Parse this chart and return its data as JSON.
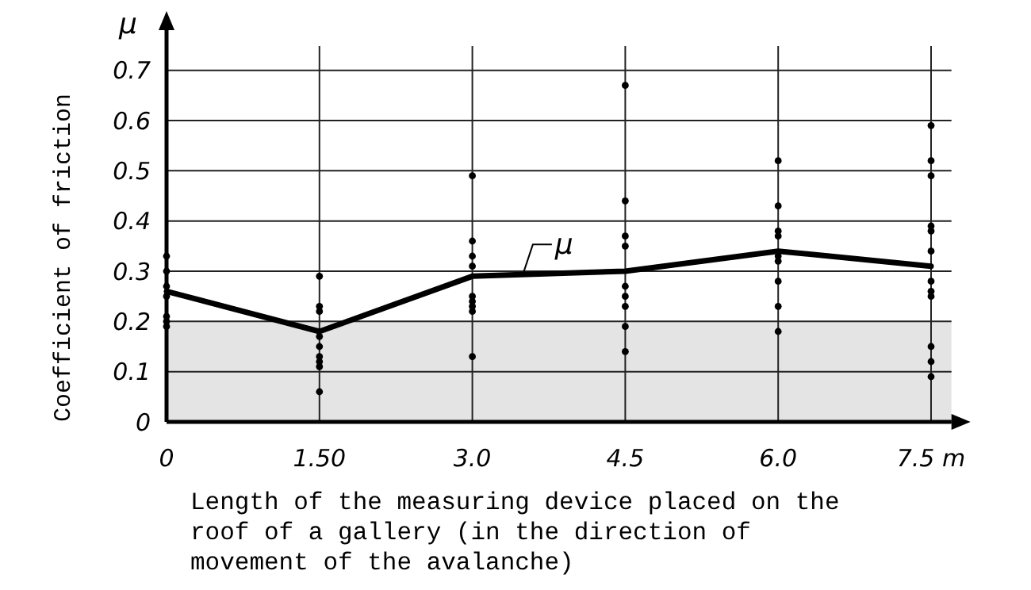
{
  "chart_data": {
    "type": "line",
    "xlabel": "Length of the measuring device placed on the roof of a gallery (in the direction of movement of the avalanche)",
    "ylabel": "Coefficient of friction",
    "annotations": [
      "μ"
    ],
    "x": [
      0,
      1.5,
      3,
      4.5,
      6,
      7.5
    ],
    "series": [
      {
        "name": "μ",
        "color": "#000000",
        "marker": "none",
        "values": [
          0.26,
          0.18,
          0.29,
          0.3,
          0.34,
          0.31
        ]
      },
      {
        "type": "scatter",
        "color": "#000000",
        "marker": "circle",
        "x": [
          0,
          0,
          0,
          0,
          0,
          0,
          0,
          1.5,
          1.5,
          1.5,
          1.5,
          1.5,
          1.5,
          1.5,
          1.5,
          1.5,
          3,
          3,
          3,
          3,
          3,
          3,
          3,
          3,
          3,
          4.5,
          4.5,
          4.5,
          4.5,
          4.5,
          4.5,
          4.5,
          4.5,
          4.5,
          6,
          6,
          6,
          6,
          6,
          6,
          6,
          6,
          6,
          7.5,
          7.5,
          7.5,
          7.5,
          7.5,
          7.5,
          7.5,
          7.5,
          7.5,
          7.5,
          7.5,
          7.5
        ],
        "values": [
          0.33,
          0.3,
          0.27,
          0.25,
          0.21,
          0.2,
          0.19,
          0.29,
          0.23,
          0.22,
          0.17,
          0.15,
          0.13,
          0.12,
          0.11,
          0.06,
          0.49,
          0.36,
          0.33,
          0.31,
          0.25,
          0.24,
          0.23,
          0.22,
          0.13,
          0.67,
          0.44,
          0.37,
          0.35,
          0.27,
          0.25,
          0.23,
          0.19,
          0.14,
          0.52,
          0.43,
          0.38,
          0.37,
          0.33,
          0.32,
          0.28,
          0.23,
          0.18,
          0.59,
          0.52,
          0.49,
          0.39,
          0.38,
          0.34,
          0.28,
          0.26,
          0.25,
          0.15,
          0.12,
          0.09
        ]
      }
    ],
    "xlim": [
      0,
      7.7
    ],
    "ylim": [
      0,
      0.78
    ],
    "xticks": [
      0,
      {
        "value": 1.5,
        "label": "1.50"
      },
      {
        "value": 3,
        "label": "3.0"
      },
      4.5,
      {
        "value": 6,
        "label": "6.0"
      },
      {
        "value": 7.5,
        "label": "7.5 m"
      }
    ],
    "yticks": [
      0,
      0.1,
      0.2,
      0.3,
      0.4,
      0.5,
      0.6,
      0.7
    ],
    "bands": [
      {
        "axis": "y",
        "from": 0,
        "to": 0.2,
        "color": "#e4e4e4"
      }
    ],
    "grid": true,
    "legend": "bottom left"
  }
}
